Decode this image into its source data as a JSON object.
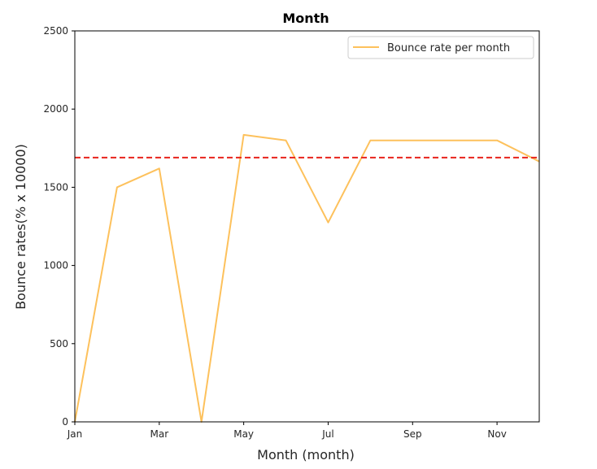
{
  "chart_data": {
    "type": "line",
    "title": "Month",
    "xlabel": "Month (month)",
    "ylabel": "Bounce rates(% x 10000)",
    "x_tick_labels": [
      "Jan",
      "Mar",
      "May",
      "Jul",
      "Sep",
      "Nov"
    ],
    "x_tick_months": [
      1,
      3,
      5,
      7,
      9,
      11
    ],
    "xlim": [
      1,
      12
    ],
    "ylim": [
      0,
      2500
    ],
    "y_ticks": [
      0,
      500,
      1000,
      1500,
      2000,
      2500
    ],
    "grid": false,
    "legend_position": "top-right",
    "series": [
      {
        "name": "Bounce rate per month",
        "color": "#fdc15c",
        "x_months": [
          1,
          2,
          3,
          4,
          5,
          6,
          7,
          8,
          9,
          10,
          11,
          12
        ],
        "values": [
          0,
          1500,
          1620,
          0,
          1835,
          1800,
          1275,
          1800,
          1800,
          1800,
          1800,
          1665
        ]
      }
    ],
    "reference_line": {
      "value": 1690,
      "color": "#e8231c",
      "style": "dashed"
    }
  }
}
